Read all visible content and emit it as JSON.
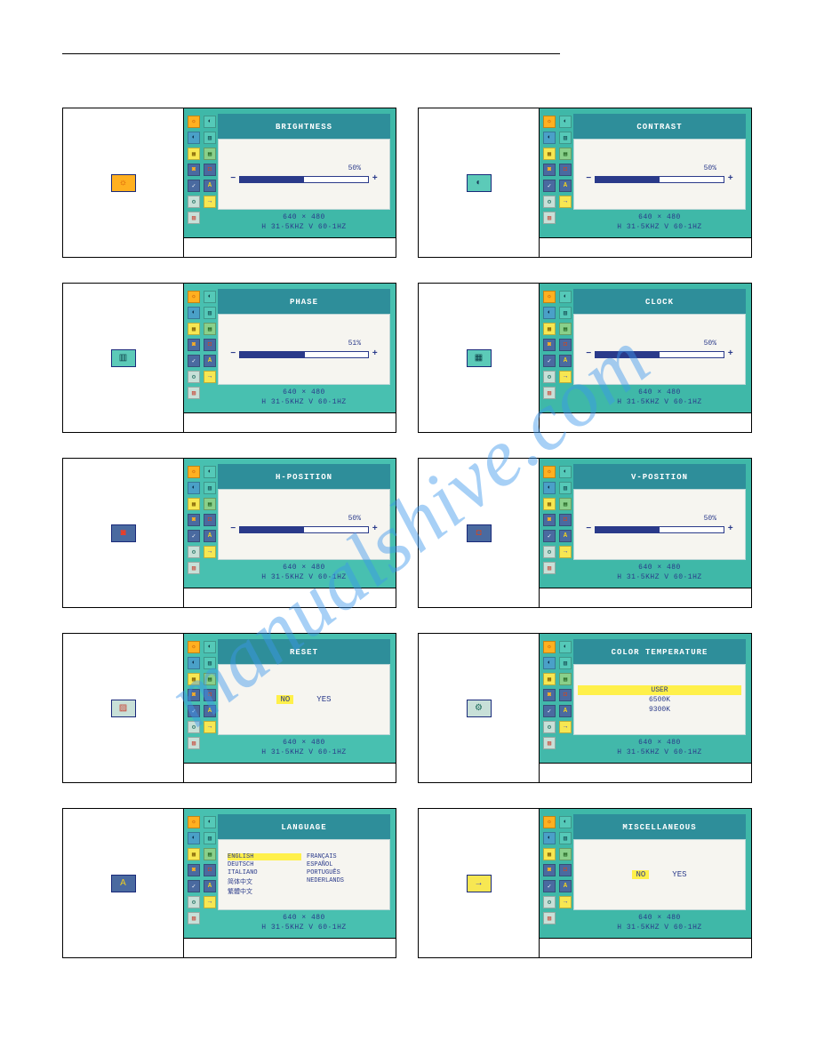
{
  "watermark": "manualshive.com",
  "footer_res": "640 × 480",
  "footer_freq": "H 31·5KHZ   V 60·1HZ",
  "mini_icons": [
    {
      "glyph": "☼",
      "bg": "#ffb020",
      "fg": "#b04000"
    },
    {
      "glyph": "◐",
      "bg": "#55c9b8",
      "fg": "#103844"
    },
    {
      "glyph": "◐",
      "bg": "#4aa0c8",
      "fg": "#0a2a44"
    },
    {
      "glyph": "▥",
      "bg": "#55c9b8",
      "fg": "#0a3a44"
    },
    {
      "glyph": "▦",
      "bg": "#f7e752",
      "fg": "#7a5a00"
    },
    {
      "glyph": "▤",
      "bg": "#8ad08a",
      "fg": "#0a4a0a"
    },
    {
      "glyph": "◙",
      "bg": "#4a6aa0",
      "fg": "#ffb020"
    },
    {
      "glyph": "◘",
      "bg": "#4a6aa0",
      "fg": "#c84a2a"
    },
    {
      "glyph": "✓",
      "bg": "#4a6aa0",
      "fg": "#ffffff"
    },
    {
      "glyph": "A",
      "bg": "#4a6aa0",
      "fg": "#f0d020"
    },
    {
      "glyph": "⚙",
      "bg": "#c8e0d8",
      "fg": "#1a6a5a"
    },
    {
      "glyph": "→",
      "bg": "#f7e752",
      "fg": "#2a3ad0"
    },
    {
      "glyph": "▨",
      "bg": "#c8e0d8",
      "fg": "#c83a2a"
    },
    {
      "glyph": "",
      "bg": "transparent",
      "fg": "transparent"
    }
  ],
  "panels": [
    {
      "id": "brightness",
      "title": "BRIGHTNESS",
      "type": "slider",
      "pct": "50%",
      "fill": 50,
      "icon": {
        "bg": "#ffb020",
        "fg": "#d04a00",
        "glyph": "☼"
      },
      "osd_bg": "#3fb8a8",
      "title_bg": "#2e8e9a"
    },
    {
      "id": "contrast",
      "title": "CONTRAST",
      "type": "slider",
      "pct": "50%",
      "fill": 50,
      "icon": {
        "bg": "#5ccab8",
        "fg": "#1a3a5a",
        "glyph": "◐"
      },
      "osd_bg": "#3fb8a8",
      "title_bg": "#2e8e9a"
    },
    {
      "id": "phase",
      "title": "PHASE",
      "type": "slider",
      "pct": "51%",
      "fill": 51,
      "icon": {
        "bg": "#5ccab8",
        "fg": "#0a3a44",
        "glyph": "▥"
      },
      "osd_bg": "#48c0b0",
      "title_bg": "#2e8e9a"
    },
    {
      "id": "clock",
      "title": "CLOCK",
      "type": "slider",
      "pct": "50%",
      "fill": 50,
      "icon": {
        "bg": "#5ccab8",
        "fg": "#0a3a44",
        "glyph": "▦"
      },
      "osd_bg": "#3fb8a8",
      "title_bg": "#2e8e9a"
    },
    {
      "id": "hpos",
      "title": "H-POSITION",
      "type": "slider",
      "pct": "50%",
      "fill": 50,
      "icon": {
        "bg": "#4a6aa0",
        "fg": "#ff3a1a",
        "glyph": "◙"
      },
      "osd_bg": "#48c0b0",
      "title_bg": "#2e8e9a"
    },
    {
      "id": "vpos",
      "title": "V-POSITION",
      "type": "slider",
      "pct": "50%",
      "fill": 50,
      "icon": {
        "bg": "#4a6aa0",
        "fg": "#c84a2a",
        "glyph": "◘"
      },
      "osd_bg": "#3fb8a8",
      "title_bg": "#2e8e9a"
    },
    {
      "id": "reset",
      "title": "RESET",
      "type": "yesno",
      "opts": [
        "NO",
        "YES"
      ],
      "sel": 0,
      "icon": {
        "bg": "#c8e0d8",
        "fg": "#c83a2a",
        "glyph": "▨"
      },
      "osd_bg": "#48c0b0",
      "title_bg": "#2e8e9a"
    },
    {
      "id": "colortemp",
      "title": "COLOR TEMPERATURE",
      "type": "ctemp",
      "ct_opts": [
        "USER",
        "6500K",
        "9300K"
      ],
      "sel": 0,
      "icon": {
        "bg": "#c8e0d8",
        "fg": "#1a6a5a",
        "glyph": "⚙"
      },
      "osd_bg": "#42b8aa",
      "title_bg": "#2e8e9a"
    },
    {
      "id": "language",
      "title": "LANGUAGE",
      "type": "lang",
      "sel": 0,
      "langs": [
        "ENGLISH",
        "FRANÇAIS",
        "DEUTSCH",
        "ESPAÑOL",
        "ITALIANO",
        "PORTUGUÊS",
        "简体中文",
        "NEDERLANDS",
        "繁體中文",
        ""
      ],
      "icon": {
        "bg": "#4a6aa0",
        "fg": "#f0d020",
        "glyph": "A"
      },
      "osd_bg": "#48c0b0",
      "title_bg": "#2e8e9a"
    },
    {
      "id": "misc",
      "title": "MISCELLANEOUS",
      "type": "yesno",
      "opts": [
        "NO",
        "YES"
      ],
      "sel": 0,
      "icon": {
        "bg": "#f7e752",
        "fg": "#2a3ad0",
        "glyph": "→"
      },
      "osd_bg": "#3fb8a8",
      "title_bg": "#2e8e9a"
    }
  ]
}
